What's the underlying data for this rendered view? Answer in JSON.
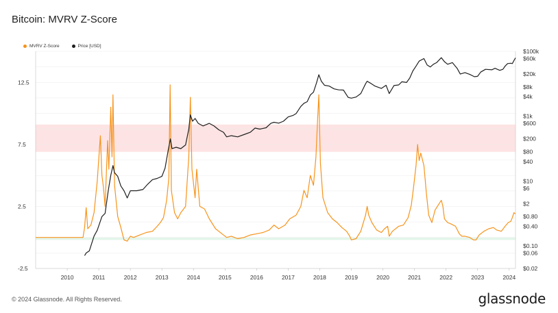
{
  "title": "Bitcoin: MVRV Z-Score",
  "footer": "© 2024 Glassnode. All Rights Reserved.",
  "brand": "glassnode",
  "colors": {
    "zscore": "#f7931a",
    "price": "#1f1f1f",
    "red_band": "#fde3e3",
    "green_band": "#e3f5ea",
    "grid": "#eeeeee"
  },
  "legend": [
    {
      "label": "MVRV Z-Score",
      "color": "#f7931a"
    },
    {
      "label": "Price [USD]",
      "color": "#1f1f1f"
    }
  ],
  "chart_data": {
    "type": "line",
    "title": "Bitcoin: MVRV Z-Score",
    "xlabel": "",
    "ylabel": "",
    "grid": true,
    "legend_position": "top-left",
    "x_ticks": [
      "2010",
      "2011",
      "2012",
      "2013",
      "2014",
      "2015",
      "2016",
      "2017",
      "2018",
      "2019",
      "2020",
      "2021",
      "2022",
      "2023",
      "2024"
    ],
    "y_left_ticks": [
      "12.5",
      "7.5",
      "2.5",
      "-2.5"
    ],
    "y_left_tick_values": [
      12.5,
      7.5,
      2.5,
      -2.5
    ],
    "y_left_range": [
      -2.5,
      15
    ],
    "y_right_scale": "log",
    "y_right_ticks": [
      "$100k",
      "$60k",
      "$20k",
      "$8k",
      "$4k",
      "$1k",
      "$600",
      "$200",
      "$80",
      "$40",
      "$10",
      "$6",
      "$2",
      "$0.80",
      "$0.40",
      "$0.10",
      "$0.06",
      "$0.02"
    ],
    "y_right_tick_values": [
      100000,
      60000,
      20000,
      8000,
      4000,
      1000,
      600,
      200,
      80,
      40,
      10,
      6,
      2,
      0.8,
      0.4,
      0.1,
      0.06,
      0.02
    ],
    "y_right_range": [
      0.02,
      100000
    ],
    "bands": [
      {
        "axis": "left",
        "from": 6.9,
        "to": 9.1,
        "color": "#fde3e3"
      },
      {
        "axis": "left",
        "from": -0.2,
        "to": 0.0,
        "color": "#e3f5ea"
      }
    ],
    "series": [
      {
        "name": "MVRV Z-Score",
        "axis": "left",
        "color": "#f7931a",
        "points": [
          [
            2009.0,
            0
          ],
          [
            2010.5,
            0
          ],
          [
            2010.55,
            0.8
          ],
          [
            2010.6,
            2.4
          ],
          [
            2010.65,
            0.7
          ],
          [
            2010.75,
            1.0
          ],
          [
            2010.85,
            2.0
          ],
          [
            2010.95,
            4.5
          ],
          [
            2011.05,
            8.2
          ],
          [
            2011.1,
            5.0
          ],
          [
            2011.15,
            4.0
          ],
          [
            2011.2,
            2.5
          ],
          [
            2011.28,
            7.8
          ],
          [
            2011.32,
            5.5
          ],
          [
            2011.38,
            10.5
          ],
          [
            2011.42,
            6.5
          ],
          [
            2011.45,
            11.5
          ],
          [
            2011.5,
            4.2
          ],
          [
            2011.6,
            1.7
          ],
          [
            2011.7,
            0.8
          ],
          [
            2011.8,
            -0.2
          ],
          [
            2011.9,
            -0.3
          ],
          [
            2012.0,
            0.1
          ],
          [
            2012.1,
            0.0
          ],
          [
            2012.3,
            0.2
          ],
          [
            2012.5,
            0.4
          ],
          [
            2012.7,
            0.5
          ],
          [
            2012.85,
            0.9
          ],
          [
            2012.95,
            1.2
          ],
          [
            2013.05,
            1.6
          ],
          [
            2013.15,
            3.0
          ],
          [
            2013.22,
            4.8
          ],
          [
            2013.26,
            12.3
          ],
          [
            2013.3,
            3.8
          ],
          [
            2013.4,
            2.0
          ],
          [
            2013.5,
            1.5
          ],
          [
            2013.6,
            2.0
          ],
          [
            2013.75,
            2.5
          ],
          [
            2013.85,
            6.5
          ],
          [
            2013.9,
            11.3
          ],
          [
            2013.95,
            5.5
          ],
          [
            2014.05,
            3.2
          ],
          [
            2014.1,
            5.5
          ],
          [
            2014.2,
            2.5
          ],
          [
            2014.35,
            2.3
          ],
          [
            2014.5,
            1.5
          ],
          [
            2014.7,
            0.7
          ],
          [
            2014.9,
            0.3
          ],
          [
            2015.05,
            0.0
          ],
          [
            2015.2,
            0.1
          ],
          [
            2015.4,
            -0.1
          ],
          [
            2015.6,
            0.0
          ],
          [
            2015.8,
            0.2
          ],
          [
            2016.0,
            0.3
          ],
          [
            2016.2,
            0.4
          ],
          [
            2016.4,
            0.6
          ],
          [
            2016.55,
            1.0
          ],
          [
            2016.7,
            0.7
          ],
          [
            2016.9,
            1.0
          ],
          [
            2017.05,
            1.5
          ],
          [
            2017.25,
            1.8
          ],
          [
            2017.4,
            2.5
          ],
          [
            2017.5,
            3.8
          ],
          [
            2017.6,
            3.2
          ],
          [
            2017.7,
            5.0
          ],
          [
            2017.8,
            4.2
          ],
          [
            2017.88,
            6.5
          ],
          [
            2017.93,
            9.5
          ],
          [
            2017.97,
            11.5
          ],
          [
            2018.02,
            6.0
          ],
          [
            2018.1,
            3.2
          ],
          [
            2018.25,
            2.0
          ],
          [
            2018.4,
            1.5
          ],
          [
            2018.55,
            1.2
          ],
          [
            2018.7,
            0.8
          ],
          [
            2018.85,
            0.5
          ],
          [
            2018.95,
            0.1
          ],
          [
            2019.0,
            -0.2
          ],
          [
            2019.15,
            -0.1
          ],
          [
            2019.3,
            0.5
          ],
          [
            2019.45,
            1.8
          ],
          [
            2019.5,
            2.5
          ],
          [
            2019.55,
            1.8
          ],
          [
            2019.65,
            1.2
          ],
          [
            2019.8,
            0.6
          ],
          [
            2019.95,
            0.4
          ],
          [
            2020.05,
            0.7
          ],
          [
            2020.15,
            0.9
          ],
          [
            2020.2,
            0.1
          ],
          [
            2020.3,
            0.5
          ],
          [
            2020.5,
            0.9
          ],
          [
            2020.65,
            1.0
          ],
          [
            2020.8,
            1.6
          ],
          [
            2020.9,
            2.6
          ],
          [
            2020.97,
            4.0
          ],
          [
            2021.05,
            5.8
          ],
          [
            2021.1,
            7.5
          ],
          [
            2021.15,
            6.2
          ],
          [
            2021.2,
            6.8
          ],
          [
            2021.3,
            5.8
          ],
          [
            2021.38,
            3.5
          ],
          [
            2021.45,
            1.8
          ],
          [
            2021.55,
            1.2
          ],
          [
            2021.65,
            2.2
          ],
          [
            2021.75,
            2.6
          ],
          [
            2021.85,
            3.0
          ],
          [
            2021.9,
            2.5
          ],
          [
            2021.95,
            1.5
          ],
          [
            2022.05,
            1.2
          ],
          [
            2022.15,
            1.1
          ],
          [
            2022.3,
            0.9
          ],
          [
            2022.42,
            0.3
          ],
          [
            2022.5,
            0.1
          ],
          [
            2022.6,
            0.1
          ],
          [
            2022.75,
            0.0
          ],
          [
            2022.87,
            -0.2
          ],
          [
            2022.95,
            -0.2
          ],
          [
            2023.05,
            0.2
          ],
          [
            2023.2,
            0.5
          ],
          [
            2023.35,
            0.7
          ],
          [
            2023.5,
            0.8
          ],
          [
            2023.6,
            0.6
          ],
          [
            2023.75,
            0.5
          ],
          [
            2023.87,
            0.9
          ],
          [
            2023.97,
            1.2
          ],
          [
            2024.05,
            1.3
          ],
          [
            2024.1,
            1.6
          ],
          [
            2024.15,
            2.0
          ],
          [
            2024.2,
            1.9
          ]
        ]
      },
      {
        "name": "Price [USD]",
        "axis": "right",
        "color": "#1f1f1f",
        "points": [
          [
            2010.55,
            0.05
          ],
          [
            2010.6,
            0.06
          ],
          [
            2010.7,
            0.07
          ],
          [
            2010.85,
            0.2
          ],
          [
            2010.95,
            0.3
          ],
          [
            2011.1,
            0.8
          ],
          [
            2011.2,
            1.0
          ],
          [
            2011.3,
            5
          ],
          [
            2011.38,
            15
          ],
          [
            2011.45,
            30
          ],
          [
            2011.5,
            18
          ],
          [
            2011.6,
            14
          ],
          [
            2011.7,
            7
          ],
          [
            2011.8,
            5
          ],
          [
            2011.9,
            3
          ],
          [
            2012.0,
            5
          ],
          [
            2012.2,
            5
          ],
          [
            2012.4,
            5.5
          ],
          [
            2012.55,
            8
          ],
          [
            2012.7,
            11
          ],
          [
            2012.85,
            12
          ],
          [
            2013.0,
            14
          ],
          [
            2013.1,
            25
          ],
          [
            2013.2,
            90
          ],
          [
            2013.27,
            200
          ],
          [
            2013.32,
            100
          ],
          [
            2013.45,
            110
          ],
          [
            2013.6,
            100
          ],
          [
            2013.75,
            130
          ],
          [
            2013.85,
            400
          ],
          [
            2013.9,
            1100
          ],
          [
            2013.97,
            700
          ],
          [
            2014.05,
            850
          ],
          [
            2014.15,
            600
          ],
          [
            2014.3,
            500
          ],
          [
            2014.5,
            600
          ],
          [
            2014.65,
            500
          ],
          [
            2014.8,
            380
          ],
          [
            2014.95,
            320
          ],
          [
            2015.05,
            230
          ],
          [
            2015.2,
            250
          ],
          [
            2015.4,
            230
          ],
          [
            2015.6,
            270
          ],
          [
            2015.8,
            320
          ],
          [
            2015.95,
            430
          ],
          [
            2016.1,
            400
          ],
          [
            2016.3,
            440
          ],
          [
            2016.45,
            600
          ],
          [
            2016.55,
            650
          ],
          [
            2016.7,
            610
          ],
          [
            2016.85,
            700
          ],
          [
            2017.0,
            950
          ],
          [
            2017.15,
            1050
          ],
          [
            2017.25,
            1200
          ],
          [
            2017.4,
            2000
          ],
          [
            2017.5,
            2500
          ],
          [
            2017.6,
            2800
          ],
          [
            2017.7,
            4500
          ],
          [
            2017.8,
            5500
          ],
          [
            2017.9,
            11000
          ],
          [
            2017.97,
            19000
          ],
          [
            2018.05,
            12000
          ],
          [
            2018.15,
            9000
          ],
          [
            2018.3,
            8500
          ],
          [
            2018.45,
            7000
          ],
          [
            2018.6,
            6500
          ],
          [
            2018.75,
            6400
          ],
          [
            2018.9,
            3800
          ],
          [
            2019.0,
            3600
          ],
          [
            2019.15,
            3900
          ],
          [
            2019.3,
            5000
          ],
          [
            2019.45,
            10000
          ],
          [
            2019.5,
            12000
          ],
          [
            2019.6,
            10500
          ],
          [
            2019.75,
            8500
          ],
          [
            2019.95,
            7200
          ],
          [
            2020.1,
            9000
          ],
          [
            2020.2,
            5000
          ],
          [
            2020.35,
            8800
          ],
          [
            2020.5,
            9200
          ],
          [
            2020.6,
            11500
          ],
          [
            2020.75,
            11000
          ],
          [
            2020.85,
            15000
          ],
          [
            2020.95,
            25000
          ],
          [
            2021.05,
            35000
          ],
          [
            2021.15,
            50000
          ],
          [
            2021.3,
            60000
          ],
          [
            2021.4,
            38000
          ],
          [
            2021.5,
            33000
          ],
          [
            2021.6,
            40000
          ],
          [
            2021.7,
            45000
          ],
          [
            2021.85,
            64000
          ],
          [
            2021.95,
            48000
          ],
          [
            2022.05,
            40000
          ],
          [
            2022.2,
            45000
          ],
          [
            2022.35,
            30000
          ],
          [
            2022.45,
            20000
          ],
          [
            2022.6,
            22000
          ],
          [
            2022.75,
            19500
          ],
          [
            2022.9,
            16500
          ],
          [
            2023.0,
            17000
          ],
          [
            2023.1,
            23000
          ],
          [
            2023.25,
            28000
          ],
          [
            2023.45,
            27000
          ],
          [
            2023.55,
            30000
          ],
          [
            2023.7,
            26000
          ],
          [
            2023.8,
            28000
          ],
          [
            2023.87,
            35000
          ],
          [
            2023.95,
            42000
          ],
          [
            2024.05,
            43000
          ],
          [
            2024.1,
            42000
          ],
          [
            2024.15,
            52000
          ],
          [
            2024.2,
            63000
          ]
        ]
      }
    ]
  }
}
